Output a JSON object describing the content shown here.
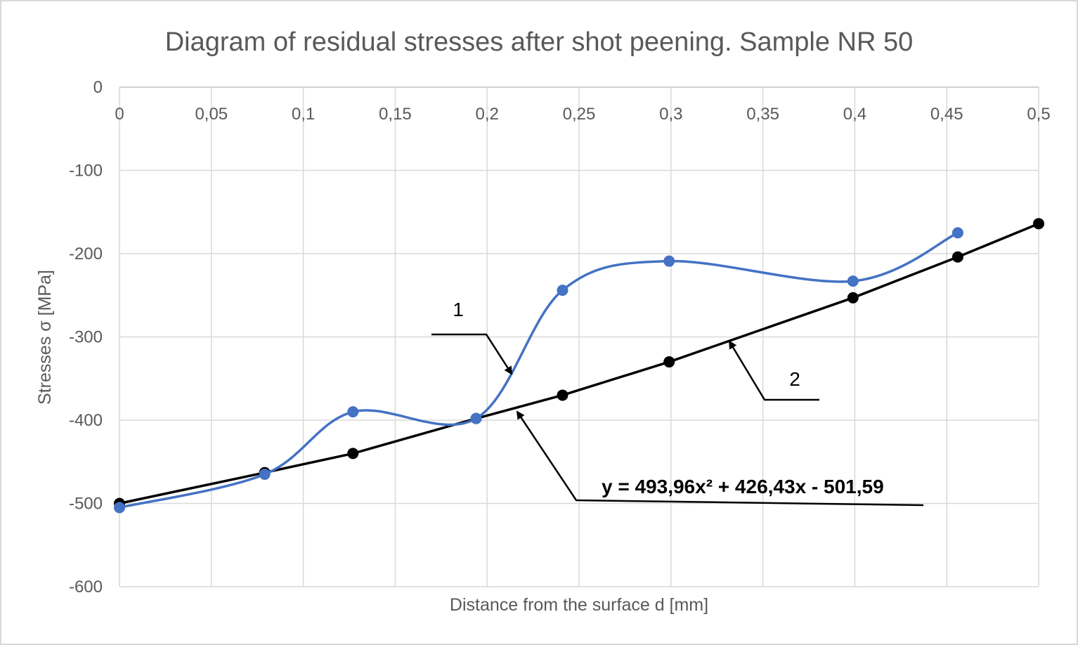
{
  "chart_data": {
    "type": "line",
    "title": "Diagram of residual stresses after shot peening. Sample NR 50",
    "xlabel": "Distance from the surface d [mm]",
    "ylabel": "Stresses σ [MPa]",
    "xlim": [
      0,
      0.5
    ],
    "ylim": [
      -600,
      0
    ],
    "x_ticks": [
      0,
      0.05,
      0.1,
      0.15,
      0.2,
      0.25,
      0.3,
      0.35,
      0.4,
      0.45,
      0.5
    ],
    "x_tick_labels": [
      "0",
      "0,05",
      "0,1",
      "0,15",
      "0,2",
      "0,25",
      "0,3",
      "0,35",
      "0,4",
      "0,45",
      "0,5"
    ],
    "y_ticks": [
      0,
      -100,
      -200,
      -300,
      -400,
      -500,
      -600
    ],
    "y_tick_labels": [
      "0",
      "-100",
      "-200",
      "-300",
      "-400",
      "-500",
      "-600"
    ],
    "grid": true,
    "x_axis_position": "top",
    "series": [
      {
        "name": "1",
        "color": "#4472c4",
        "smooth": true,
        "x": [
          0,
          0.079,
          0.127,
          0.194,
          0.241,
          0.299,
          0.399,
          0.456
        ],
        "values": [
          -505,
          -465,
          -390,
          -398,
          -244,
          -209,
          -233,
          -175
        ]
      },
      {
        "name": "2",
        "color": "#000000",
        "smooth": false,
        "x": [
          0,
          0.079,
          0.127,
          0.194,
          0.241,
          0.299,
          0.399,
          0.456,
          0.5
        ],
        "values": [
          -500,
          -463,
          -440,
          -398,
          -370,
          -330,
          -253,
          -204,
          -164
        ]
      }
    ],
    "annotations": {
      "label_1": "1",
      "label_2": "2",
      "equation": "y = 493,96x² + 426,43x - 501,59"
    }
  }
}
